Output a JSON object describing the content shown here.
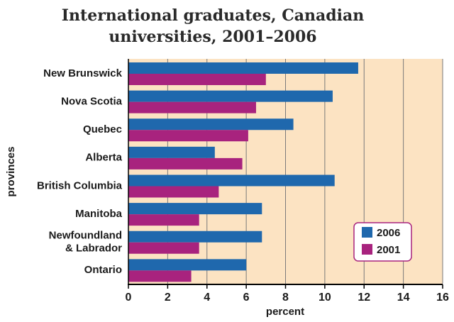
{
  "chart_data": {
    "type": "bar",
    "orientation": "horizontal",
    "title_lines": [
      "International graduates, Canadian",
      "universities, 2001–2006"
    ],
    "xlabel": "percent",
    "ylabel": "provinces",
    "xlim": [
      0,
      16
    ],
    "xticks": [
      "0",
      "2",
      "4",
      "6",
      "8",
      "10",
      "12",
      "14",
      "16"
    ],
    "categories": [
      [
        "New Brunswick"
      ],
      [
        "Nova Scotia"
      ],
      [
        "Quebec"
      ],
      [
        "Alberta"
      ],
      [
        "British Columbia"
      ],
      [
        "Manitoba"
      ],
      [
        "Newfoundland",
        "& Labrador"
      ],
      [
        "Ontario"
      ]
    ],
    "series": [
      {
        "name": "2006",
        "color": "#1f68ad",
        "values": [
          11.7,
          10.4,
          8.4,
          4.4,
          10.5,
          6.8,
          6.8,
          6.0
        ]
      },
      {
        "name": "2001",
        "color": "#a8237e",
        "values": [
          7.0,
          6.5,
          6.1,
          5.8,
          4.6,
          3.6,
          3.6,
          3.2
        ]
      }
    ],
    "grid": true,
    "legend_position": "bottom-right",
    "plot_background": "#fce3c2"
  }
}
